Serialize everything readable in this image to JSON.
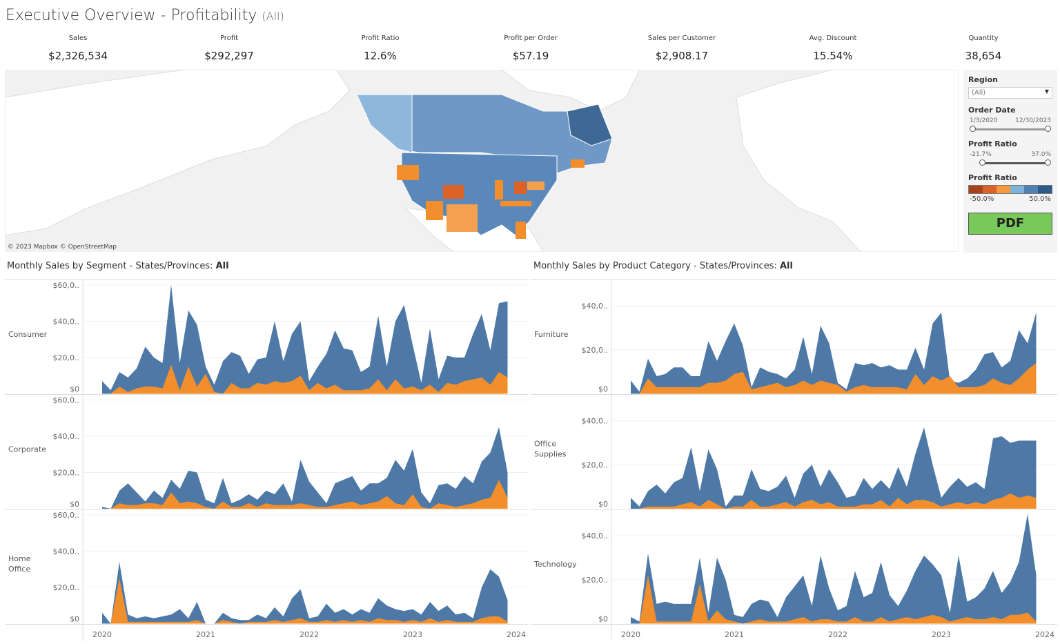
{
  "header": {
    "title": "Executive Overview - Profitability",
    "filter": "(All)"
  },
  "kpis": [
    {
      "label": "Sales",
      "value": "$2,326,534"
    },
    {
      "label": "Profit",
      "value": "$292,297"
    },
    {
      "label": "Profit Ratio",
      "value": "12.6%"
    },
    {
      "label": "Profit per Order",
      "value": "$57.19"
    },
    {
      "label": "Sales per Customer",
      "value": "$2,908.17"
    },
    {
      "label": "Avg. Discount",
      "value": "15.54%"
    },
    {
      "label": "Quantity",
      "value": "38,654"
    }
  ],
  "map": {
    "credit": "© 2023 Mapbox © OpenStreetMap"
  },
  "filters": {
    "region": {
      "label": "Region",
      "value": "(All)"
    },
    "order_date": {
      "label": "Order Date",
      "min": "1/3/2020",
      "max": "12/30/2023"
    },
    "profit_ratio": {
      "label": "Profit Ratio",
      "min": "-21.7%",
      "max": "37.0%",
      "fill_from": 0.0,
      "fill_to": 1.0
    },
    "legend": {
      "label": "Profit Ratio",
      "min": "-50.0%",
      "max": "50.0%",
      "colors": [
        "#a9411e",
        "#dc6228",
        "#f59a3e",
        "#7fb2d9",
        "#4f80b2",
        "#2d5a88"
      ]
    },
    "pdf_label": "PDF"
  },
  "colors": {
    "sales": "#4e79a7",
    "profit": "#f28e2b"
  },
  "chart_titles": {
    "segment_prefix": "Monthly Sales by Segment - States/Provinces: ",
    "segment_value": "All",
    "category_prefix": "Monthly Sales by Product Category - States/Provinces: ",
    "category_value": "All"
  },
  "chart_data": [
    {
      "type": "area",
      "id": "segment",
      "x_start": "2020-01",
      "x_end": "2023-12",
      "x_ticks": [
        "2020",
        "2021",
        "2022",
        "2023",
        "2024"
      ],
      "y_ticks": [
        "$0",
        "$20,0..",
        "$40,0..",
        "$60,0.."
      ],
      "y_tick_values": [
        0,
        20,
        40,
        60
      ],
      "ylim": [
        0,
        63
      ],
      "units": "thousands USD",
      "panels": [
        {
          "label": "Consumer",
          "series": [
            {
              "name": "Sales",
              "values": [
                7,
                2,
                12,
                9,
                14,
                26,
                20,
                17,
                60,
                17,
                46,
                38,
                15,
                5,
                18,
                23,
                21,
                11,
                19,
                20,
                40,
                18,
                33,
                40,
                7,
                15,
                22,
                35,
                25,
                24,
                12,
                15,
                43,
                15,
                40,
                49,
                27,
                6,
                36,
                8,
                21,
                20,
                20,
                33,
                44,
                24,
                50,
                51
              ]
            },
            {
              "name": "Profit",
              "values": [
                0,
                0,
                4,
                1,
                3,
                4,
                4,
                3,
                16,
                2,
                15,
                4,
                11,
                1,
                0,
                6,
                3,
                3,
                6,
                5,
                7,
                6,
                7,
                10,
                2,
                6,
                3,
                5,
                2,
                2,
                2,
                3,
                8,
                2,
                8,
                3,
                4,
                2,
                5,
                1,
                6,
                5,
                7,
                8,
                9,
                5,
                12,
                9
              ]
            }
          ]
        },
        {
          "label": "Corporate",
          "series": [
            {
              "name": "Sales",
              "values": [
                1,
                0,
                10,
                14,
                9,
                4,
                10,
                6,
                16,
                11,
                21,
                20,
                5,
                3,
                17,
                3,
                5,
                8,
                5,
                10,
                8,
                14,
                4,
                27,
                15,
                9,
                3,
                14,
                16,
                18,
                10,
                14,
                14,
                17,
                27,
                21,
                33,
                9,
                3,
                13,
                14,
                11,
                18,
                14,
                26,
                31,
                45,
                20
              ]
            },
            {
              "name": "Profit",
              "values": [
                0,
                0,
                3,
                2,
                2,
                3,
                3,
                2,
                9,
                3,
                4,
                3,
                1,
                0,
                4,
                1,
                1,
                3,
                1,
                3,
                2,
                2,
                2,
                3,
                2,
                1,
                1,
                2,
                3,
                4,
                2,
                3,
                4,
                7,
                3,
                2,
                8,
                1,
                0,
                3,
                2,
                1,
                2,
                3,
                5,
                6,
                16,
                6
              ]
            }
          ]
        },
        {
          "label": "Home Office",
          "series": [
            {
              "name": "Sales",
              "values": [
                6,
                0,
                34,
                5,
                3,
                4,
                3,
                4,
                5,
                8,
                3,
                12,
                0,
                0,
                6,
                3,
                2,
                2,
                5,
                3,
                9,
                4,
                14,
                19,
                3,
                4,
                11,
                6,
                8,
                5,
                8,
                6,
                14,
                10,
                8,
                7,
                8,
                5,
                12,
                7,
                10,
                5,
                6,
                3,
                20,
                30,
                26,
                13
              ]
            },
            {
              "name": "Profit",
              "values": [
                0,
                0,
                25,
                1,
                1,
                1,
                1,
                1,
                1,
                1,
                1,
                2,
                0,
                0,
                2,
                1,
                0,
                1,
                1,
                1,
                2,
                1,
                2,
                3,
                1,
                1,
                2,
                1,
                2,
                1,
                2,
                1,
                3,
                2,
                2,
                1,
                2,
                1,
                3,
                1,
                2,
                1,
                1,
                1,
                3,
                4,
                4,
                1
              ]
            }
          ]
        }
      ]
    },
    {
      "type": "area",
      "id": "category",
      "x_start": "2020-01",
      "x_end": "2023-12",
      "x_ticks": [
        "2020",
        "2021",
        "2022",
        "2023",
        "2024"
      ],
      "y_ticks": [
        "$0",
        "$20,0..",
        "$40,0.."
      ],
      "y_tick_values": [
        0,
        20,
        40
      ],
      "ylim": [
        0,
        52
      ],
      "units": "thousands USD",
      "panels": [
        {
          "label": "Furniture",
          "series": [
            {
              "name": "Sales",
              "values": [
                6,
                1,
                16,
                8,
                9,
                12,
                12,
                8,
                8,
                24,
                15,
                24,
                32,
                22,
                3,
                12,
                10,
                9,
                7,
                11,
                26,
                9,
                31,
                23,
                5,
                2,
                14,
                13,
                14,
                12,
                13,
                11,
                11,
                21,
                11,
                32,
                37,
                6,
                5,
                7,
                11,
                18,
                19,
                12,
                15,
                29,
                23,
                37
              ]
            },
            {
              "name": "Profit",
              "values": [
                0,
                0,
                7,
                3,
                3,
                3,
                3,
                3,
                3,
                5,
                5,
                6,
                9,
                10,
                2,
                3,
                4,
                5,
                3,
                4,
                6,
                4,
                6,
                5,
                4,
                1,
                3,
                4,
                3,
                3,
                3,
                3,
                2,
                9,
                4,
                8,
                6,
                8,
                3,
                3,
                3,
                4,
                7,
                5,
                4,
                7,
                11,
                14
              ]
            }
          ]
        },
        {
          "label": "Office Supplies",
          "series": [
            {
              "name": "Sales",
              "values": [
                5,
                1,
                8,
                11,
                7,
                12,
                14,
                28,
                8,
                27,
                18,
                1,
                6,
                6,
                18,
                9,
                8,
                10,
                15,
                5,
                16,
                20,
                10,
                18,
                12,
                5,
                6,
                14,
                9,
                13,
                9,
                19,
                10,
                25,
                37,
                20,
                5,
                10,
                14,
                10,
                12,
                9,
                32,
                33,
                30,
                31,
                31,
                31
              ]
            },
            {
              "name": "Profit",
              "values": [
                0,
                0,
                1,
                1,
                1,
                1,
                2,
                3,
                1,
                4,
                2,
                0,
                1,
                1,
                4,
                1,
                1,
                2,
                3,
                1,
                3,
                4,
                2,
                3,
                1,
                1,
                1,
                2,
                2,
                4,
                1,
                5,
                2,
                4,
                4,
                3,
                1,
                2,
                3,
                2,
                3,
                2,
                4,
                5,
                7,
                5,
                6,
                5
              ]
            }
          ]
        },
        {
          "label": "Technology",
          "series": [
            {
              "name": "Sales",
              "values": [
                3,
                1,
                32,
                9,
                10,
                9,
                9,
                9,
                30,
                5,
                30,
                20,
                4,
                3,
                9,
                11,
                10,
                3,
                12,
                17,
                22,
                8,
                31,
                16,
                6,
                8,
                24,
                12,
                14,
                28,
                13,
                8,
                15,
                24,
                31,
                27,
                22,
                5,
                31,
                10,
                12,
                16,
                24,
                14,
                19,
                28,
                50,
                22
              ]
            },
            {
              "name": "Profit",
              "values": [
                0,
                0,
                22,
                1,
                1,
                1,
                1,
                1,
                18,
                1,
                6,
                2,
                1,
                0,
                1,
                2,
                1,
                1,
                1,
                2,
                3,
                1,
                2,
                2,
                1,
                1,
                3,
                1,
                1,
                3,
                1,
                2,
                3,
                2,
                3,
                4,
                3,
                1,
                2,
                3,
                2,
                2,
                3,
                2,
                4,
                4,
                5,
                1
              ]
            }
          ]
        }
      ]
    }
  ]
}
